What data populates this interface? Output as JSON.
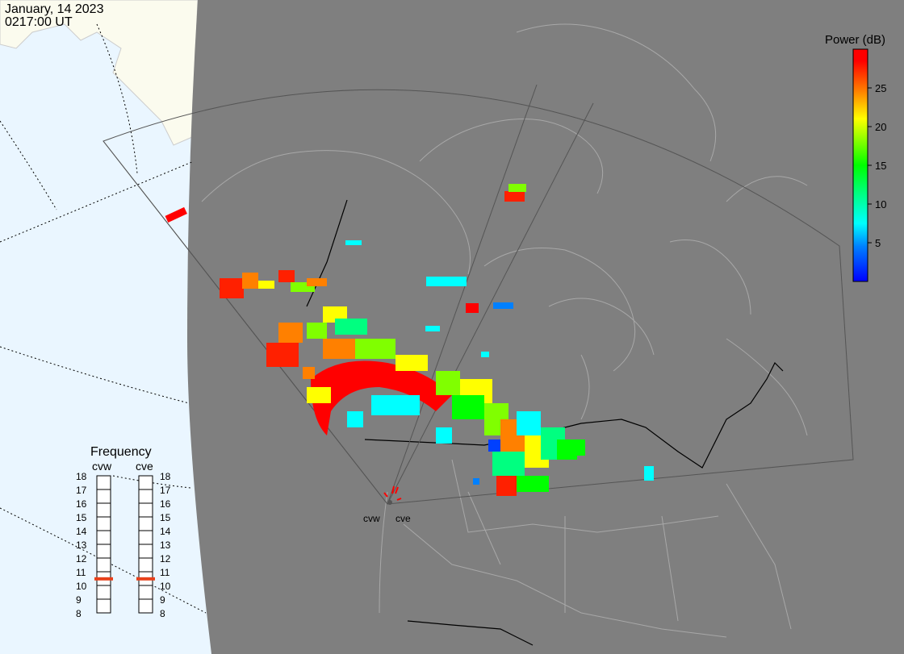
{
  "header": {
    "date": "January, 14 2023",
    "time": "0217:00 UT"
  },
  "colorbar": {
    "title": "Power (dB)",
    "ticks": [
      "25",
      "20",
      "15",
      "10",
      "5"
    ],
    "colors": [
      "#0000ff",
      "#0080ff",
      "#00ffff",
      "#00ff80",
      "#00ff00",
      "#80ff00",
      "#ffff00",
      "#ff8000",
      "#ff0000"
    ]
  },
  "frequency_panel": {
    "title": "Frequency",
    "radars": [
      {
        "code": "cvw",
        "selected_mhz": 11
      },
      {
        "code": "cve",
        "selected_mhz": 11
      }
    ],
    "scale_labels": [
      "18",
      "17",
      "16",
      "15",
      "14",
      "13",
      "12",
      "11",
      "10",
      "9",
      "8"
    ],
    "marker_color": "#e8401a"
  },
  "radar_sites": {
    "west_label": "cvw",
    "east_label": "cve"
  },
  "map_colors": {
    "ocean": "#eaf6ff",
    "land_ice": "#fbfbee",
    "night": "#7f7f7f",
    "coast_lines": "#a8a8a8",
    "borders": "#000000"
  }
}
